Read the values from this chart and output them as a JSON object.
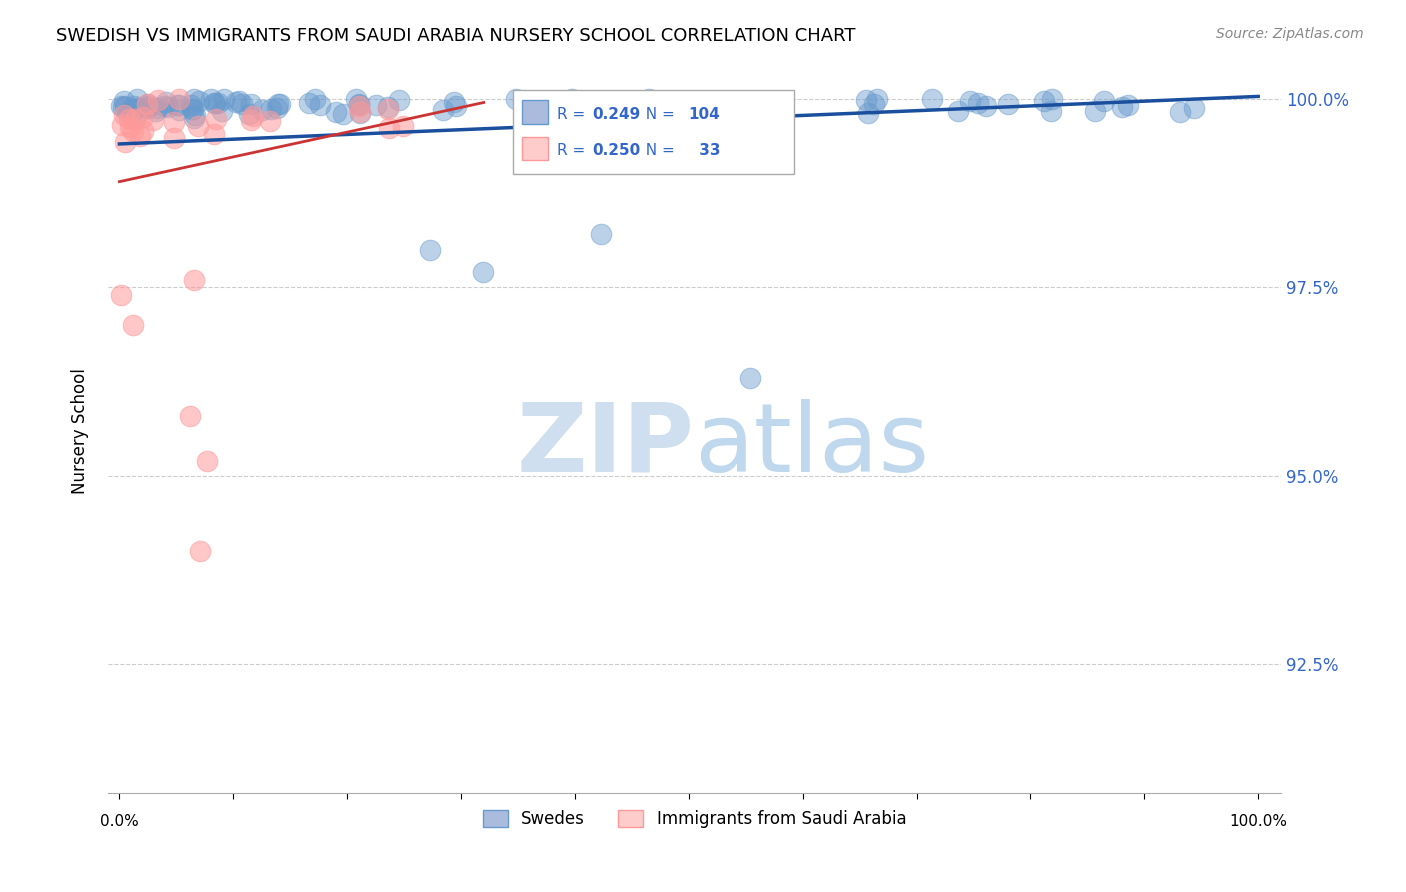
{
  "title": "SWEDISH VS IMMIGRANTS FROM SAUDI ARABIA NURSERY SCHOOL CORRELATION CHART",
  "source": "Source: ZipAtlas.com",
  "ylabel": "Nursery School",
  "ytick_labels": [
    "100.0%",
    "97.5%",
    "95.0%",
    "92.5%"
  ],
  "ytick_values": [
    1.0,
    0.975,
    0.95,
    0.925
  ],
  "legend_swedes": "Swedes",
  "legend_immigrants": "Immigrants from Saudi Arabia",
  "blue_color": "#6699CC",
  "pink_color": "#FF9999",
  "trend_blue": "#1a4f9e",
  "trend_pink": "#cc3333",
  "watermark_zip_color": "#d0dff0",
  "watermark_atlas_color": "#c0d8ee",
  "R_blue": "0.249",
  "N_blue": "104",
  "R_pink": "0.250",
  "N_pink": " 33",
  "xmin": -0.01,
  "xmax": 1.02,
  "ymin": 0.908,
  "ymax": 1.004
}
